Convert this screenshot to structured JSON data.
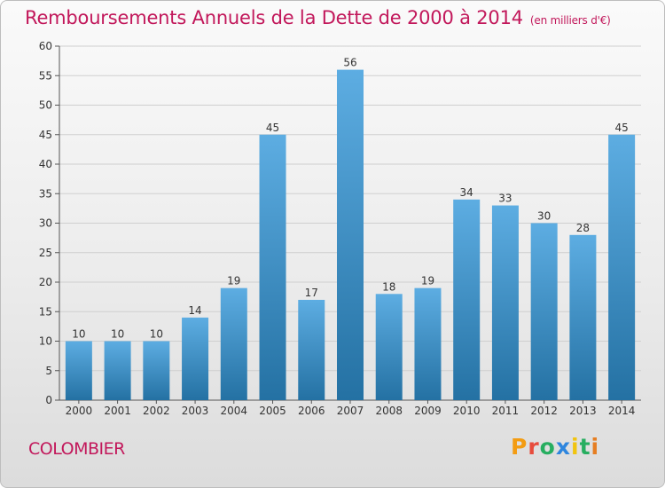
{
  "header": {
    "title": "Remboursements Annuels de la Dette de 2000 à 2014",
    "unit_note": "(en milliers d'€)"
  },
  "footer": {
    "commune": "COLOMBIER",
    "brand": "Proxiti",
    "brand_colors": [
      "#f39c12",
      "#e74c3c",
      "#27ae60",
      "#2e86de",
      "#f1c40f",
      "#27ae60",
      "#e67e22"
    ]
  },
  "colors": {
    "title": "#c2185b",
    "bar_light": "#5dade2",
    "bar_dark": "#2471a3",
    "axis_text": "#333333",
    "grid": "#cfcfcf"
  },
  "chart_data": {
    "type": "bar",
    "categories": [
      "2000",
      "2001",
      "2002",
      "2003",
      "2004",
      "2005",
      "2006",
      "2007",
      "2008",
      "2009",
      "2010",
      "2011",
      "2012",
      "2013",
      "2014"
    ],
    "values": [
      10,
      10,
      10,
      14,
      19,
      45,
      17,
      56,
      18,
      19,
      34,
      33,
      30,
      28,
      45
    ],
    "ylim": [
      0,
      60
    ],
    "yticks": [
      0,
      5,
      10,
      15,
      20,
      25,
      30,
      35,
      40,
      45,
      50,
      55,
      60
    ],
    "grid": true,
    "data_labels": true
  }
}
